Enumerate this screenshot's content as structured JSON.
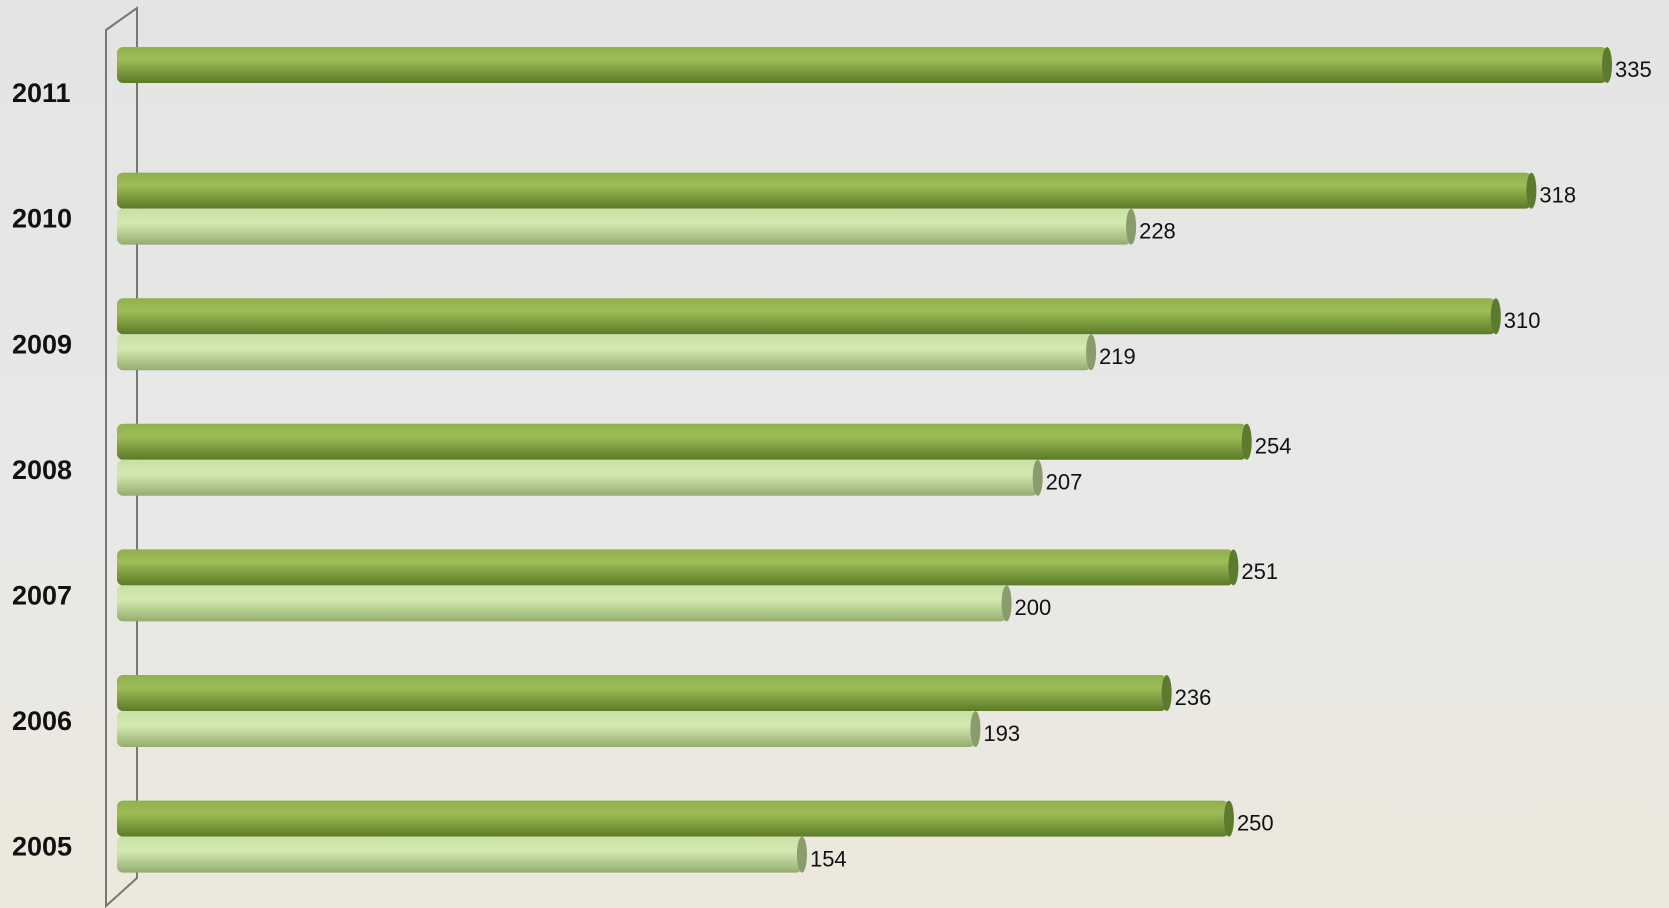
{
  "chart_data": {
    "type": "bar",
    "orientation": "horizontal",
    "categories": [
      "2011",
      "2010",
      "2009",
      "2008",
      "2007",
      "2006",
      "2005"
    ],
    "series": [
      {
        "color": "#7a9e3a",
        "values": [
          335,
          318,
          310,
          254,
          251,
          236,
          250
        ]
      },
      {
        "color": "#b9d78f",
        "values": [
          null,
          228,
          219,
          207,
          200,
          193,
          154
        ]
      }
    ]
  }
}
